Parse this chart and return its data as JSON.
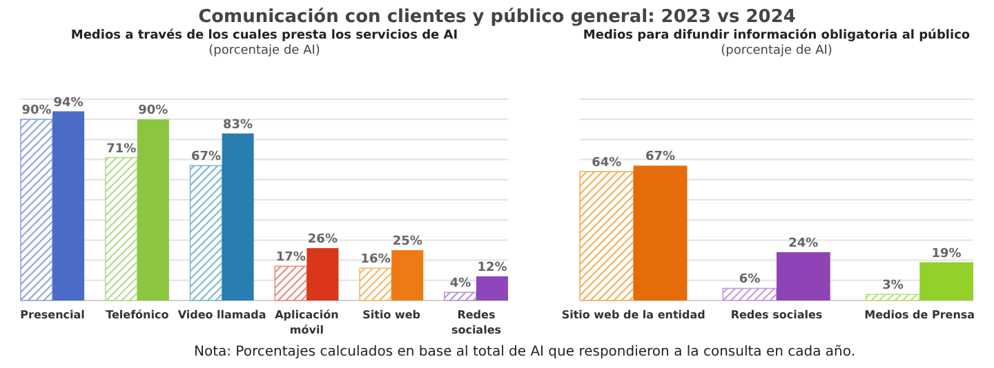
{
  "chart_data": [
    {
      "type": "other",
      "title": "Comunicación con clientes y público general: 2023 vs 2024",
      "annotations": [
        "Nota: Porcentajes calculados en base al total de AI que respondieron a la consulta en cada año."
      ]
    },
    {
      "type": "bar",
      "title": "Medios a través de los cuales presta los servicios de AI",
      "subtitle": "(porcentaje de AI)",
      "categories": [
        "Presencial",
        "Telefónico",
        "Video llamada",
        "Aplicación móvil",
        "Sitio web",
        "Redes sociales"
      ],
      "ylim": [
        0,
        100
      ],
      "yticks": [
        {
          "value": 0,
          "label": null
        },
        {
          "value": 10,
          "label": null
        },
        {
          "value": 20,
          "label": null
        },
        {
          "value": 30,
          "label": null
        },
        {
          "value": 40,
          "label": null
        },
        {
          "value": 50,
          "label": null
        },
        {
          "value": 60,
          "label": null
        },
        {
          "value": 70,
          "label": null
        },
        {
          "value": 80,
          "label": null
        },
        {
          "value": 90,
          "label": null
        },
        {
          "value": 100,
          "label": null
        }
      ],
      "grid": "y",
      "tick_labels": "x",
      "series": [
        {
          "colors": [
            "#8fa6dc",
            "#b5d98a",
            "#7fb8d6",
            "#e88a80",
            "#f2b86a",
            "#b795d6"
          ],
          "values": [
            90,
            71,
            67,
            17,
            16,
            4
          ],
          "value_labels": [
            "90%",
            "71%",
            "67%",
            "17%",
            "16%",
            "4%"
          ]
        },
        {
          "colors": [
            "#4a6bc6",
            "#8cc63f",
            "#2a7db0",
            "#d9361a",
            "#ee7a16",
            "#8e47b8"
          ],
          "values": [
            94,
            90,
            83,
            26,
            25,
            12
          ],
          "value_labels": [
            "94%",
            "90%",
            "83%",
            "26%",
            "25%",
            "12%"
          ]
        }
      ]
    },
    {
      "type": "bar",
      "title": "Medios para difundir información obligatoria al público",
      "subtitle": "(porcentaje de AI)",
      "categories": [
        "Sitio web de la entidad",
        "Redes sociales",
        "Medios de Prensa"
      ],
      "ylim": [
        0,
        100
      ],
      "yticks": [
        {
          "value": 0,
          "label": null
        },
        {
          "value": 10,
          "label": null
        },
        {
          "value": 20,
          "label": null
        },
        {
          "value": 30,
          "label": null
        },
        {
          "value": 40,
          "label": null
        },
        {
          "value": 50,
          "label": null
        },
        {
          "value": 60,
          "label": null
        },
        {
          "value": 70,
          "label": null
        },
        {
          "value": 80,
          "label": null
        },
        {
          "value": 90,
          "label": null
        },
        {
          "value": 100,
          "label": null
        }
      ],
      "grid": "y",
      "tick_labels": "x",
      "series": [
        {
          "colors": [
            "#f2b05a",
            "#c49ae0",
            "#b8e07a"
          ],
          "values": [
            64,
            6,
            3
          ],
          "value_labels": [
            "64%",
            "6%",
            "3%"
          ]
        },
        {
          "colors": [
            "#e66c0a",
            "#8e44b4",
            "#92d02a"
          ],
          "values": [
            67,
            24,
            19
          ],
          "value_labels": [
            "67%",
            "24%",
            "19%"
          ]
        }
      ]
    }
  ]
}
